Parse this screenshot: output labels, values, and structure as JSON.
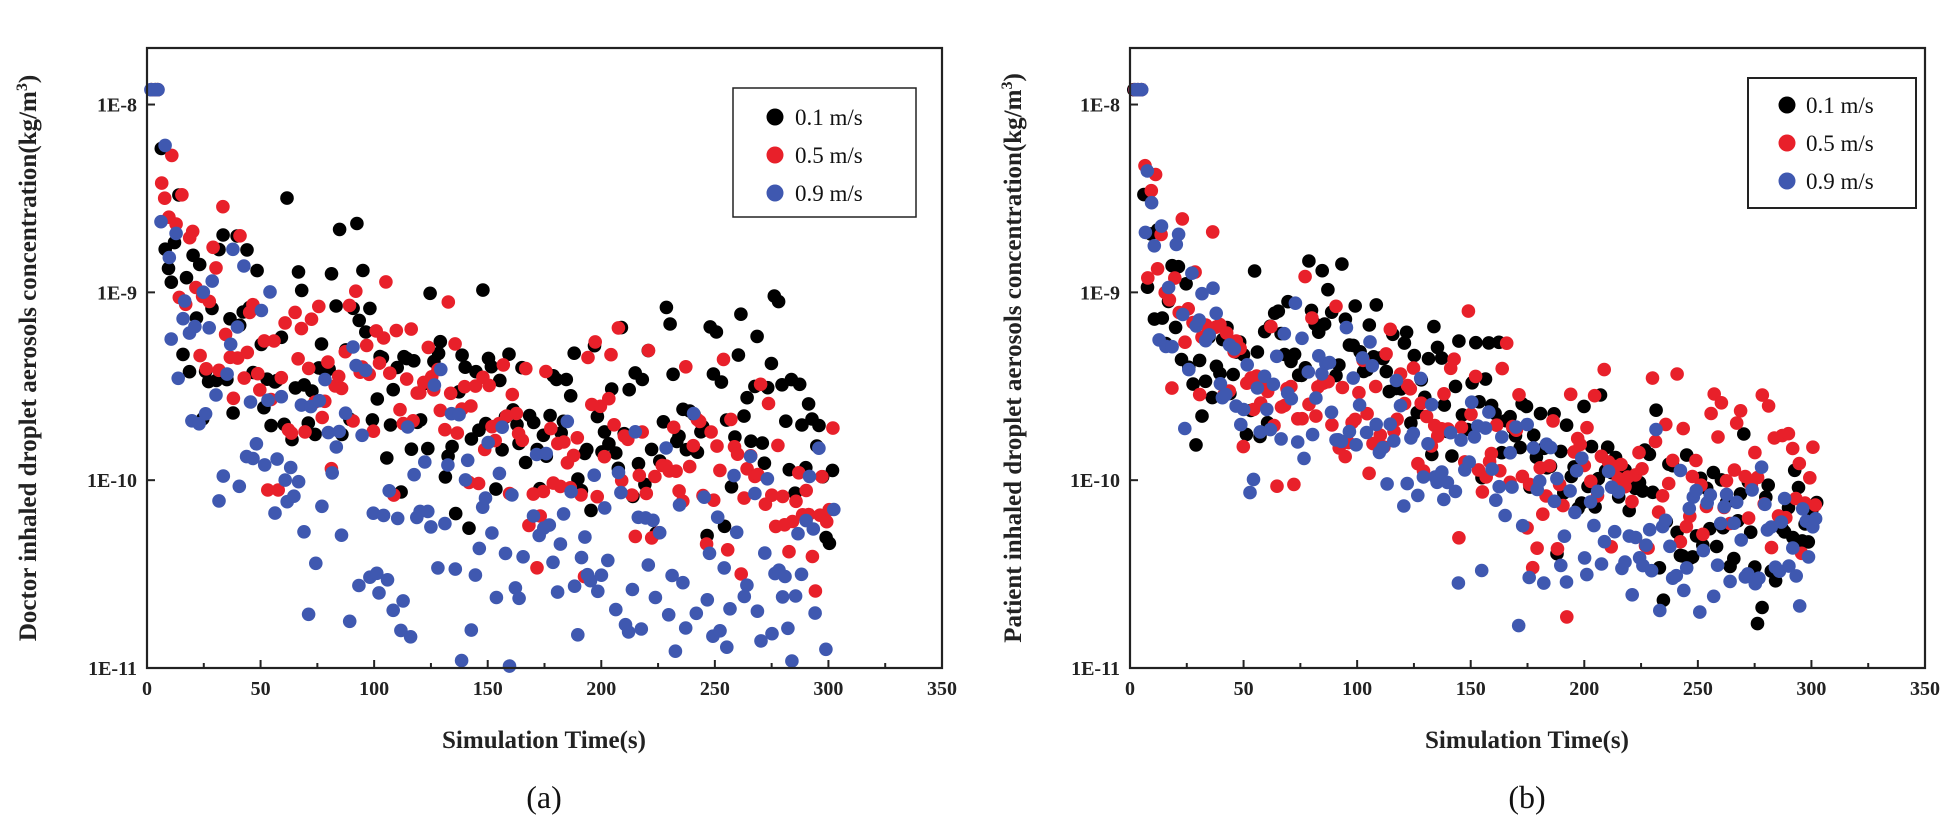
{
  "chart_data": [
    {
      "id": "a",
      "type": "scatter",
      "caption": "(a)",
      "xlabel": "Simulation Time(s)",
      "ylabel": "Doctor inhaled droplet aerosols concentration(kg/m",
      "ylabel_sup": "3",
      "ylabel_close": ")",
      "xlim": [
        0,
        350
      ],
      "ylim": [
        1e-11,
        2e-08
      ],
      "yscale": "log",
      "xticks": [
        0,
        50,
        100,
        150,
        200,
        250,
        300,
        350
      ],
      "xtick_labels": [
        "0",
        "50",
        "100",
        "150",
        "200",
        "250",
        "300",
        "350"
      ],
      "yticks": [
        1e-11,
        1e-10,
        1e-09,
        1e-08
      ],
      "ytick_labels": [
        "1E-11",
        "1E-10",
        "1E-9",
        "1E-8"
      ],
      "legend_position": "top-right",
      "series": [
        {
          "name": "0.1 m/s",
          "color": "#000000",
          "seed": 11,
          "anchors": [
            [
              2,
              1.2e-08
            ],
            [
              10,
              2e-09
            ],
            [
              30,
              5.5e-10
            ],
            [
              60,
              6.5e-10
            ],
            [
              100,
              4e-10
            ],
            [
              150,
              2.6e-10
            ],
            [
              200,
              2.1e-10
            ],
            [
              250,
              3e-10
            ],
            [
              303,
              1.5e-10
            ]
          ],
          "spread": 0.55
        },
        {
          "name": "0.5 m/s",
          "color": "#e8202a",
          "seed": 23,
          "anchors": [
            [
              2,
              1.2e-08
            ],
            [
              8,
              2.5e-09
            ],
            [
              20,
              9e-10
            ],
            [
              40,
              5e-10
            ],
            [
              80,
              3.5e-10
            ],
            [
              130,
              2.4e-10
            ],
            [
              180,
              1.6e-10
            ],
            [
              240,
              1.2e-10
            ],
            [
              303,
              8e-11
            ]
          ],
          "spread": 0.5
        },
        {
          "name": "0.9 m/s",
          "color": "#3f58b0",
          "seed": 37,
          "anchors": [
            [
              2,
              1.2e-08
            ],
            [
              15,
              8e-10
            ],
            [
              40,
              5e-10
            ],
            [
              70,
              1.2e-10
            ],
            [
              120,
              6e-11
            ],
            [
              180,
              4e-11
            ],
            [
              240,
              3e-11
            ],
            [
              303,
              3e-11
            ]
          ],
          "spread": 0.75
        }
      ]
    },
    {
      "id": "b",
      "type": "scatter",
      "caption": "(b)",
      "xlabel": "Simulation Time(s)",
      "ylabel": "Patient inhaled droplet aerosols concentration(kg/m",
      "ylabel_sup": "3",
      "ylabel_close": ")",
      "xlim": [
        0,
        350
      ],
      "ylim": [
        1e-11,
        2e-08
      ],
      "yscale": "log",
      "xticks": [
        0,
        50,
        100,
        150,
        200,
        250,
        300,
        350
      ],
      "xtick_labels": [
        "0",
        "50",
        "100",
        "150",
        "200",
        "250",
        "300",
        "350"
      ],
      "yticks": [
        1e-11,
        1e-10,
        1e-09,
        1e-08
      ],
      "ytick_labels": [
        "1E-11",
        "1E-10",
        "1E-9",
        "1E-8"
      ],
      "legend_position": "top-right",
      "series": [
        {
          "name": "0.1 m/s",
          "color": "#000000",
          "seed": 53,
          "anchors": [
            [
              2,
              1.2e-08
            ],
            [
              8,
              1.5e-09
            ],
            [
              30,
              4e-10
            ],
            [
              80,
              6e-10
            ],
            [
              120,
              4e-10
            ],
            [
              160,
              2e-10
            ],
            [
              220,
              1e-10
            ],
            [
              260,
              6e-11
            ],
            [
              303,
              6e-11
            ]
          ],
          "spread": 0.4
        },
        {
          "name": "0.5 m/s",
          "color": "#e8202a",
          "seed": 67,
          "anchors": [
            [
              2,
              1.2e-08
            ],
            [
              8,
              2.5e-09
            ],
            [
              25,
              8e-10
            ],
            [
              60,
              3e-10
            ],
            [
              120,
              2.5e-10
            ],
            [
              180,
              1.2e-10
            ],
            [
              240,
              1e-10
            ],
            [
              303,
              9e-11
            ]
          ],
          "spread": 0.45
        },
        {
          "name": "0.9 m/s",
          "color": "#3f58b0",
          "seed": 79,
          "anchors": [
            [
              2,
              1.2e-08
            ],
            [
              10,
              2e-09
            ],
            [
              30,
              4e-10
            ],
            [
              80,
              3e-10
            ],
            [
              130,
              1.3e-10
            ],
            [
              180,
              8e-11
            ],
            [
              240,
              5e-11
            ],
            [
              303,
              5e-11
            ]
          ],
          "spread": 0.45
        }
      ]
    }
  ]
}
